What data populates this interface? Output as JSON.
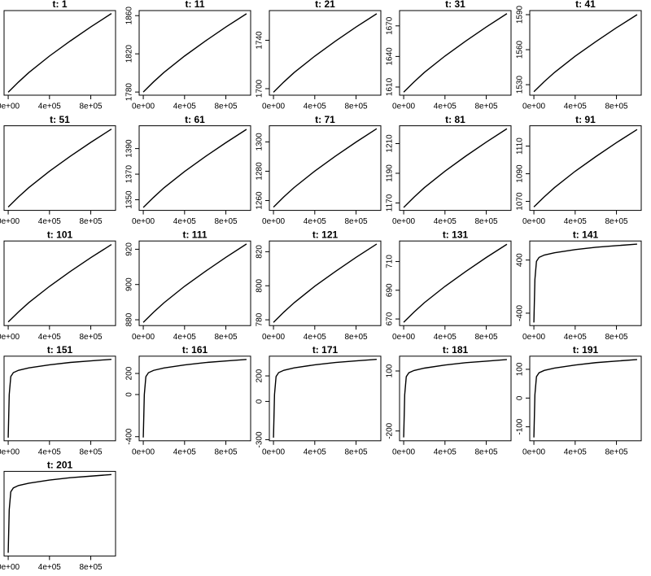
{
  "chart_data": [
    {
      "type": "line",
      "title": "t: 1",
      "x": [
        0,
        100000,
        200000,
        400000,
        600000,
        800000,
        1000000
      ],
      "values": [
        1870,
        1880.4,
        1890,
        1906.8,
        1922,
        1936.4,
        1950
      ],
      "color": "#000000",
      "xlim": [
        -40000,
        1040000
      ],
      "ylim": [
        1867,
        1953
      ],
      "xticks": [
        {
          "value": 0,
          "label": "0e+00"
        },
        {
          "value": 400000,
          "label": "4e+05"
        },
        {
          "value": 800000,
          "label": "8e+05"
        }
      ]
    },
    {
      "type": "line",
      "title": "t: 11",
      "x": [
        0,
        100000,
        200000,
        400000,
        600000,
        800000,
        1000000
      ],
      "values": [
        1780,
        1790.7,
        1800.5,
        1817.7,
        1833.3,
        1848.1,
        1862
      ],
      "color": "#000000",
      "xlim": [
        -40000,
        1040000
      ],
      "ylim": [
        1776.7,
        1865.3
      ],
      "xticks": [
        {
          "value": 0,
          "label": "0e+00"
        },
        {
          "value": 400000,
          "label": "4e+05"
        },
        {
          "value": 800000,
          "label": "8e+05"
        }
      ],
      "yticks": [
        1780,
        1820,
        1860
      ]
    },
    {
      "type": "line",
      "title": "t: 21",
      "x": [
        0,
        100000,
        200000,
        400000,
        600000,
        800000,
        1000000
      ],
      "values": [
        1697,
        1705.5,
        1713.3,
        1726.9,
        1739.3,
        1751,
        1762
      ],
      "color": "#000000",
      "xlim": [
        -40000,
        1040000
      ],
      "ylim": [
        1694.6,
        1764.6
      ],
      "xticks": [
        {
          "value": 0,
          "label": "0e+00"
        },
        {
          "value": 400000,
          "label": "4e+05"
        },
        {
          "value": 800000,
          "label": "8e+05"
        }
      ],
      "yticks": [
        1700,
        1740
      ]
    },
    {
      "type": "line",
      "title": "t: 31",
      "x": [
        0,
        100000,
        200000,
        400000,
        600000,
        800000,
        1000000
      ],
      "values": [
        1605,
        1615,
        1624.3,
        1640.4,
        1655,
        1668.9,
        1682
      ],
      "color": "#000000",
      "xlim": [
        -40000,
        1040000
      ],
      "ylim": [
        1602,
        1685
      ],
      "xticks": [
        {
          "value": 0,
          "label": "0e+00"
        },
        {
          "value": 400000,
          "label": "4e+05"
        },
        {
          "value": 800000,
          "label": "8e+05"
        }
      ],
      "yticks": [
        1610,
        1640,
        1670
      ]
    },
    {
      "type": "line",
      "title": "t: 41",
      "x": [
        0,
        100000,
        200000,
        400000,
        600000,
        800000,
        1000000
      ],
      "values": [
        1524,
        1532.6,
        1540.5,
        1554.4,
        1566.9,
        1578.8,
        1590
      ],
      "color": "#000000",
      "xlim": [
        -40000,
        1040000
      ],
      "ylim": [
        1521,
        1593.5
      ],
      "xticks": [
        {
          "value": 0,
          "label": "0e+00"
        },
        {
          "value": 400000,
          "label": "4e+05"
        },
        {
          "value": 800000,
          "label": "8e+05"
        }
      ],
      "yticks": [
        1530,
        1560,
        1590
      ]
    },
    {
      "type": "line",
      "title": "t: 51",
      "x": [
        0,
        100000,
        200000,
        400000,
        600000,
        800000,
        1000000
      ],
      "values": [
        1430,
        1439.1,
        1447.5,
        1462.2,
        1475.5,
        1488.1,
        1500
      ],
      "color": "#000000",
      "xlim": [
        -40000,
        1040000
      ],
      "ylim": [
        1427,
        1503
      ],
      "xticks": [
        {
          "value": 0,
          "label": "0e+00"
        },
        {
          "value": 400000,
          "label": "4e+05"
        },
        {
          "value": 800000,
          "label": "8e+05"
        }
      ]
    },
    {
      "type": "line",
      "title": "t: 61",
      "x": [
        0,
        100000,
        200000,
        400000,
        600000,
        800000,
        1000000
      ],
      "values": [
        1344,
        1351.9,
        1359.3,
        1372.1,
        1383.7,
        1394.6,
        1405
      ],
      "color": "#000000",
      "xlim": [
        -40000,
        1040000
      ],
      "ylim": [
        1341.7,
        1407.8
      ],
      "xticks": [
        {
          "value": 0,
          "label": "0e+00"
        },
        {
          "value": 400000,
          "label": "4e+05"
        },
        {
          "value": 800000,
          "label": "8e+05"
        }
      ],
      "yticks": [
        1350,
        1370,
        1390
      ]
    },
    {
      "type": "line",
      "title": "t: 71",
      "x": [
        0,
        100000,
        200000,
        400000,
        600000,
        800000,
        1000000
      ],
      "values": [
        1255.5,
        1262.5,
        1268.9,
        1280.1,
        1290.3,
        1299.9,
        1309
      ],
      "color": "#000000",
      "xlim": [
        -40000,
        1040000
      ],
      "ylim": [
        1253.3,
        1311
      ],
      "xticks": [
        {
          "value": 0,
          "label": "0e+00"
        },
        {
          "value": 400000,
          "label": "4e+05"
        },
        {
          "value": 800000,
          "label": "8e+05"
        }
      ],
      "yticks": [
        1260,
        1280,
        1300
      ]
    },
    {
      "type": "line",
      "title": "t: 81",
      "x": [
        0,
        100000,
        200000,
        400000,
        600000,
        800000,
        1000000
      ],
      "values": [
        1167,
        1173.9,
        1180.3,
        1191.4,
        1201.5,
        1211,
        1220
      ],
      "color": "#000000",
      "xlim": [
        -40000,
        1040000
      ],
      "ylim": [
        1165,
        1222
      ],
      "xticks": [
        {
          "value": 0,
          "label": "0e+00"
        },
        {
          "value": 400000,
          "label": "4e+05"
        },
        {
          "value": 800000,
          "label": "8e+05"
        }
      ],
      "yticks": [
        1170,
        1190,
        1210
      ]
    },
    {
      "type": "line",
      "title": "t: 91",
      "x": [
        0,
        100000,
        200000,
        400000,
        600000,
        800000,
        1000000
      ],
      "values": [
        1066,
        1073.3,
        1080,
        1091.8,
        1102.4,
        1112.5,
        1122
      ],
      "color": "#000000",
      "xlim": [
        -40000,
        1040000
      ],
      "ylim": [
        1063.5,
        1124.7
      ],
      "xticks": [
        {
          "value": 0,
          "label": "0e+00"
        },
        {
          "value": 400000,
          "label": "4e+05"
        },
        {
          "value": 800000,
          "label": "8e+05"
        }
      ],
      "yticks": [
        1070,
        1090,
        1110
      ]
    },
    {
      "type": "line",
      "title": "t: 101",
      "x": [
        0,
        100000,
        200000,
        400000,
        600000,
        800000,
        1000000
      ],
      "values": [
        965,
        973.5,
        981.3,
        994.9,
        1007.3,
        1019,
        1030
      ],
      "color": "#000000",
      "xlim": [
        -40000,
        1040000
      ],
      "ylim": [
        962,
        1033
      ],
      "xticks": [
        {
          "value": 0,
          "label": "0e+00"
        },
        {
          "value": 400000,
          "label": "4e+05"
        },
        {
          "value": 800000,
          "label": "8e+05"
        }
      ]
    },
    {
      "type": "line",
      "title": "t: 111",
      "x": [
        0,
        100000,
        200000,
        400000,
        600000,
        800000,
        1000000
      ],
      "values": [
        878.5,
        884.3,
        889.6,
        899,
        907.4,
        915.4,
        923
      ],
      "color": "#000000",
      "xlim": [
        -40000,
        1040000
      ],
      "ylim": [
        876.7,
        924.7
      ],
      "xticks": [
        {
          "value": 0,
          "label": "0e+00"
        },
        {
          "value": 400000,
          "label": "4e+05"
        },
        {
          "value": 800000,
          "label": "8e+05"
        }
      ],
      "yticks": [
        880,
        900,
        920
      ]
    },
    {
      "type": "line",
      "title": "t: 121",
      "x": [
        0,
        100000,
        200000,
        400000,
        600000,
        800000,
        1000000
      ],
      "values": [
        778.5,
        784.5,
        790,
        799.7,
        808.4,
        816.7,
        824.5
      ],
      "color": "#000000",
      "xlim": [
        -40000,
        1040000
      ],
      "ylim": [
        776.6,
        826.3
      ],
      "xticks": [
        {
          "value": 0,
          "label": "0e+00"
        },
        {
          "value": 400000,
          "label": "4e+05"
        },
        {
          "value": 800000,
          "label": "8e+05"
        }
      ],
      "yticks": [
        780,
        800,
        820
      ]
    },
    {
      "type": "line",
      "title": "t: 131",
      "x": [
        0,
        100000,
        200000,
        400000,
        600000,
        800000,
        1000000
      ],
      "values": [
        667.7,
        674.8,
        681.3,
        692.7,
        703,
        712.8,
        722
      ],
      "color": "#000000",
      "xlim": [
        -40000,
        1040000
      ],
      "ylim": [
        665.4,
        724.3
      ],
      "xticks": [
        {
          "value": 0,
          "label": "0e+00"
        },
        {
          "value": 400000,
          "label": "4e+05"
        },
        {
          "value": 800000,
          "label": "8e+05"
        }
      ],
      "yticks": [
        670,
        690,
        710
      ]
    },
    {
      "type": "line",
      "title": "t: 141",
      "x": [
        0,
        10000,
        25000,
        50000,
        100000,
        200000,
        400000,
        600000,
        800000,
        1000000
      ],
      "values": [
        -540,
        109,
        380.4,
        439.4,
        474.8,
        510.2,
        557.4,
        592.8,
        616.4,
        640
      ],
      "color": "#000000",
      "xlim": [
        -40000,
        1040000
      ],
      "ylim": [
        -587,
        687
      ],
      "xticks": [
        {
          "value": 0,
          "label": "0e+00"
        },
        {
          "value": 400000,
          "label": "4e+05"
        },
        {
          "value": 800000,
          "label": "8e+05"
        }
      ],
      "yticks": [
        -400,
        400
      ]
    },
    {
      "type": "line",
      "title": "t: 151",
      "x": [
        0,
        10000,
        25000,
        50000,
        100000,
        200000,
        400000,
        600000,
        800000,
        1000000
      ],
      "values": [
        -420,
        75,
        282,
        327,
        354,
        381,
        417,
        444,
        462,
        480
      ],
      "color": "#000000",
      "xlim": [
        -40000,
        1040000
      ],
      "ylim": [
        -456,
        516
      ],
      "xticks": [
        {
          "value": 0,
          "label": "0e+00"
        },
        {
          "value": 400000,
          "label": "4e+05"
        },
        {
          "value": 800000,
          "label": "8e+05"
        }
      ]
    },
    {
      "type": "line",
      "title": "t: 161",
      "x": [
        0,
        10000,
        25000,
        50000,
        100000,
        200000,
        400000,
        600000,
        800000,
        1000000
      ],
      "values": [
        -408,
        -0.5,
        170,
        207,
        229.3,
        251.5,
        281.1,
        303.4,
        318.2,
        333
      ],
      "color": "#000000",
      "xlim": [
        -40000,
        1040000
      ],
      "ylim": [
        -439,
        364
      ],
      "xticks": [
        {
          "value": 0,
          "label": "0e+00"
        },
        {
          "value": 400000,
          "label": "4e+05"
        },
        {
          "value": 800000,
          "label": "8e+05"
        }
      ],
      "yticks": [
        -400,
        0,
        200
      ]
    },
    {
      "type": "line",
      "title": "t: 171",
      "x": [
        0,
        10000,
        25000,
        50000,
        100000,
        200000,
        400000,
        600000,
        800000,
        1000000
      ],
      "values": [
        -284,
        53.7,
        194.9,
        225.6,
        244,
        262.5,
        287,
        305.4,
        317.7,
        330
      ],
      "color": "#000000",
      "xlim": [
        -40000,
        1040000
      ],
      "ylim": [
        -308.6,
        354.6
      ],
      "xticks": [
        {
          "value": 0,
          "label": "0e+00"
        },
        {
          "value": 400000,
          "label": "4e+05"
        },
        {
          "value": 800000,
          "label": "8e+05"
        }
      ],
      "yticks": [
        -300,
        0,
        200
      ]
    },
    {
      "type": "line",
      "title": "t: 181",
      "x": [
        0,
        10000,
        25000,
        50000,
        100000,
        200000,
        400000,
        600000,
        800000,
        1000000
      ],
      "values": [
        -232,
        -18,
        71.4,
        90.9,
        102.5,
        114.2,
        129.8,
        141.4,
        149.2,
        157
      ],
      "color": "#000000",
      "xlim": [
        -40000,
        1040000
      ],
      "ylim": [
        -249,
        174
      ],
      "xticks": [
        {
          "value": 0,
          "label": "0e+00"
        },
        {
          "value": 400000,
          "label": "4e+05"
        },
        {
          "value": 800000,
          "label": "8e+05"
        }
      ],
      "yticks": [
        -200,
        100
      ]
    },
    {
      "type": "line",
      "title": "t: 191",
      "x": [
        0,
        10000,
        25000,
        50000,
        100000,
        200000,
        400000,
        600000,
        800000,
        1000000
      ],
      "values": [
        -137,
        12,
        74.4,
        87.9,
        96.1,
        104.2,
        115,
        123.2,
        128.6,
        134
      ],
      "color": "#000000",
      "xlim": [
        -40000,
        1040000
      ],
      "ylim": [
        -148.6,
        145.7
      ],
      "xticks": [
        {
          "value": 0,
          "label": "0e+00"
        },
        {
          "value": 400000,
          "label": "4e+05"
        },
        {
          "value": 800000,
          "label": "8e+05"
        }
      ],
      "yticks": [
        -100,
        0,
        100
      ]
    },
    {
      "type": "line",
      "title": "t: 201",
      "x": [
        0,
        10000,
        25000,
        50000,
        100000,
        200000,
        400000,
        600000,
        800000,
        1000000
      ],
      "values": [
        -100,
        21,
        71.6,
        82.6,
        89.2,
        95.8,
        104.6,
        111.2,
        115.6,
        120
      ],
      "color": "#000000",
      "xlim": [
        -40000,
        1040000
      ],
      "ylim": [
        -109,
        129
      ],
      "xticks": [
        {
          "value": 0,
          "label": "0e+00"
        },
        {
          "value": 400000,
          "label": "4e+05"
        },
        {
          "value": 800000,
          "label": "8e+05"
        }
      ]
    }
  ]
}
